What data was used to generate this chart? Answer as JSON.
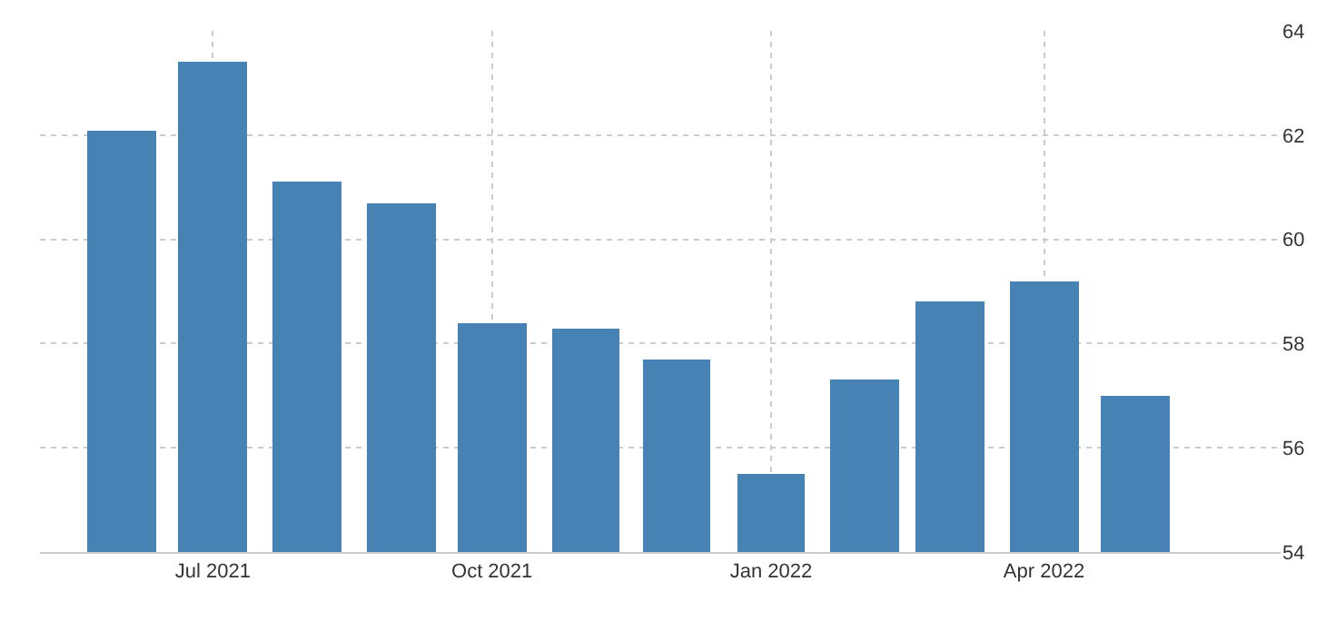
{
  "chart_data": {
    "type": "bar",
    "x": [
      "2021-06",
      "2021-07",
      "2021-08",
      "2021-09",
      "2021-10",
      "2021-11",
      "2021-12",
      "2022-01",
      "2022-02",
      "2022-03",
      "2022-04",
      "2022-05"
    ],
    "values": [
      62.1,
      63.4,
      61.1,
      60.7,
      58.4,
      58.3,
      57.7,
      55.5,
      57.3,
      58.8,
      59.2,
      57.0
    ],
    "color": "#4682b4",
    "ylim": [
      54,
      64
    ],
    "yticks": [
      54,
      56,
      58,
      60,
      62,
      64
    ],
    "xlim": [
      "2021-05-05",
      "2022-06-18"
    ],
    "xticks": [
      {
        "value": "2021-07",
        "label": "Jul 2021"
      },
      {
        "value": "2021-10",
        "label": "Oct 2021"
      },
      {
        "value": "2022-01",
        "label": "Jan 2022"
      },
      {
        "value": "2022-04",
        "label": "Apr 2022"
      }
    ],
    "grid": true
  }
}
